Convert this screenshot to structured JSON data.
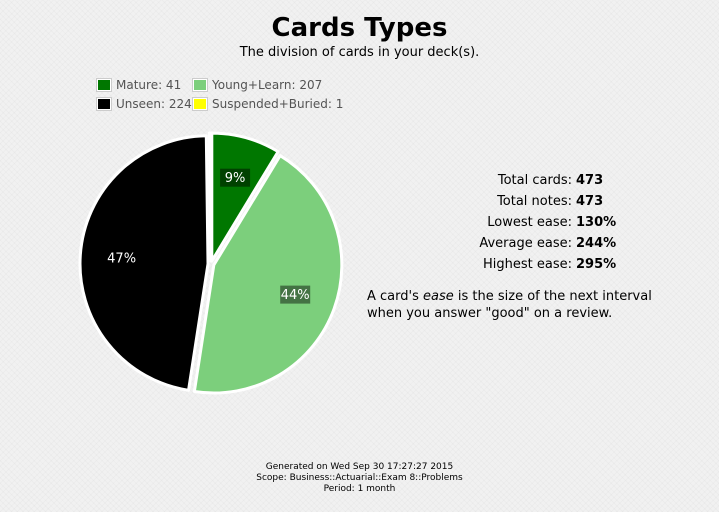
{
  "header": {
    "title": "Cards Types",
    "subtitle": "The division of cards in your deck(s)."
  },
  "legend": [
    {
      "label": "Mature: 41",
      "color": "#007700"
    },
    {
      "label": "Young+Learn: 207",
      "color": "#7ccf7c"
    },
    {
      "label": "Unseen: 224",
      "color": "#000000"
    },
    {
      "label": "Suspended+Buried: 1",
      "color": "#ffff00"
    }
  ],
  "chart_data": {
    "type": "pie",
    "categories": [
      "Mature",
      "Young+Learn",
      "Unseen",
      "Suspended+Buried"
    ],
    "values": [
      41,
      207,
      224,
      1
    ],
    "colors": [
      "#007700",
      "#7ccf7c",
      "#000000",
      "#ffff00"
    ],
    "slice_labels": [
      "9%",
      "44%",
      "47%",
      ""
    ],
    "legend_position": "top-left"
  },
  "stats": {
    "total_cards_label": "Total cards:",
    "total_cards_value": "473",
    "total_notes_label": "Total notes:",
    "total_notes_value": "473",
    "lowest_ease_label": "Lowest ease:",
    "lowest_ease_value": "130%",
    "average_ease_label": "Average ease:",
    "average_ease_value": "244%",
    "highest_ease_label": "Highest ease:",
    "highest_ease_value": "295%"
  },
  "ease_note": {
    "prefix": "A card's ",
    "emphasis": "ease",
    "suffix": " is the size of the next interval when you answer \"good\" on a review."
  },
  "footer": {
    "generated": "Generated on Wed Sep 30 17:27:27 2015",
    "scope": "Scope: Business::Actuarial::Exam 8::Problems",
    "period": "Period: 1 month"
  }
}
